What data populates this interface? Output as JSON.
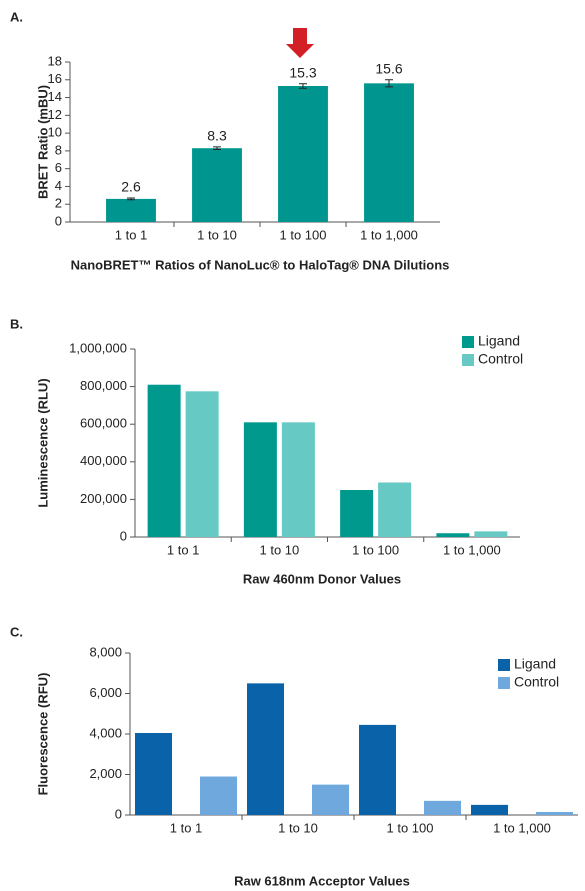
{
  "chart_data": [
    {
      "type": "bar",
      "label": "A.",
      "title": "NanoBRET™ Ratios of NanoLuc® to HaloTag® DNA Dilutions",
      "y_label": "BRET Ratio (mBU)",
      "categories": [
        "1 to 1",
        "1 to 10",
        "1 to 100",
        "1 to 1,000"
      ],
      "values": [
        2.6,
        8.3,
        15.3,
        15.6
      ],
      "errors": [
        0.1,
        0.15,
        0.25,
        0.4
      ],
      "color": "#00968f",
      "ylim": [
        0,
        18
      ],
      "yticks": [
        0,
        2,
        4,
        6,
        8,
        10,
        12,
        14,
        16,
        18
      ]
    },
    {
      "type": "grouped-bar",
      "label": "B.",
      "title": "Raw 460nm Donor Values",
      "y_label": "Luminescence (RLU)",
      "categories": [
        "1 to 1",
        "1 to 10",
        "1 to 100",
        "1 to 1,000"
      ],
      "series": [
        {
          "name": "Ligand",
          "color": "#00998e",
          "values": [
            810000,
            610000,
            250000,
            20000
          ]
        },
        {
          "name": "Control",
          "color": "#66c9c4",
          "values": [
            775000,
            610000,
            290000,
            30000
          ]
        }
      ],
      "ylim": [
        0,
        1000000
      ],
      "yticks": [
        0,
        {
          "value": 200000,
          "label": "200,000"
        },
        {
          "value": 400000,
          "label": "400,000"
        },
        {
          "value": 600000,
          "label": "600,000"
        },
        {
          "value": 800000,
          "label": "800,000"
        },
        {
          "value": 1000000,
          "label": "1,000,000"
        }
      ]
    },
    {
      "type": "grouped-bar",
      "label": "C.",
      "title": "Raw 618nm Acceptor Values",
      "y_label": "Fluorescence (RFU)",
      "categories": [
        "1 to 1",
        "1 to 10",
        "1 to 100",
        "1 to 1,000"
      ],
      "series": [
        {
          "name": "Ligand",
          "color": "#0a62a8",
          "values": [
            4050,
            6500,
            4450,
            500
          ]
        },
        {
          "name": "Control",
          "color": "#6fa8dc",
          "values": [
            1900,
            1500,
            700,
            150
          ]
        }
      ],
      "ylim": [
        0,
        8000
      ],
      "yticks": [
        0,
        {
          "value": 2000,
          "label": "2,000"
        },
        {
          "value": 4000,
          "label": "4,000"
        },
        {
          "value": 6000,
          "label": "6,000"
        },
        {
          "value": 8000,
          "label": "8,000"
        }
      ]
    }
  ]
}
